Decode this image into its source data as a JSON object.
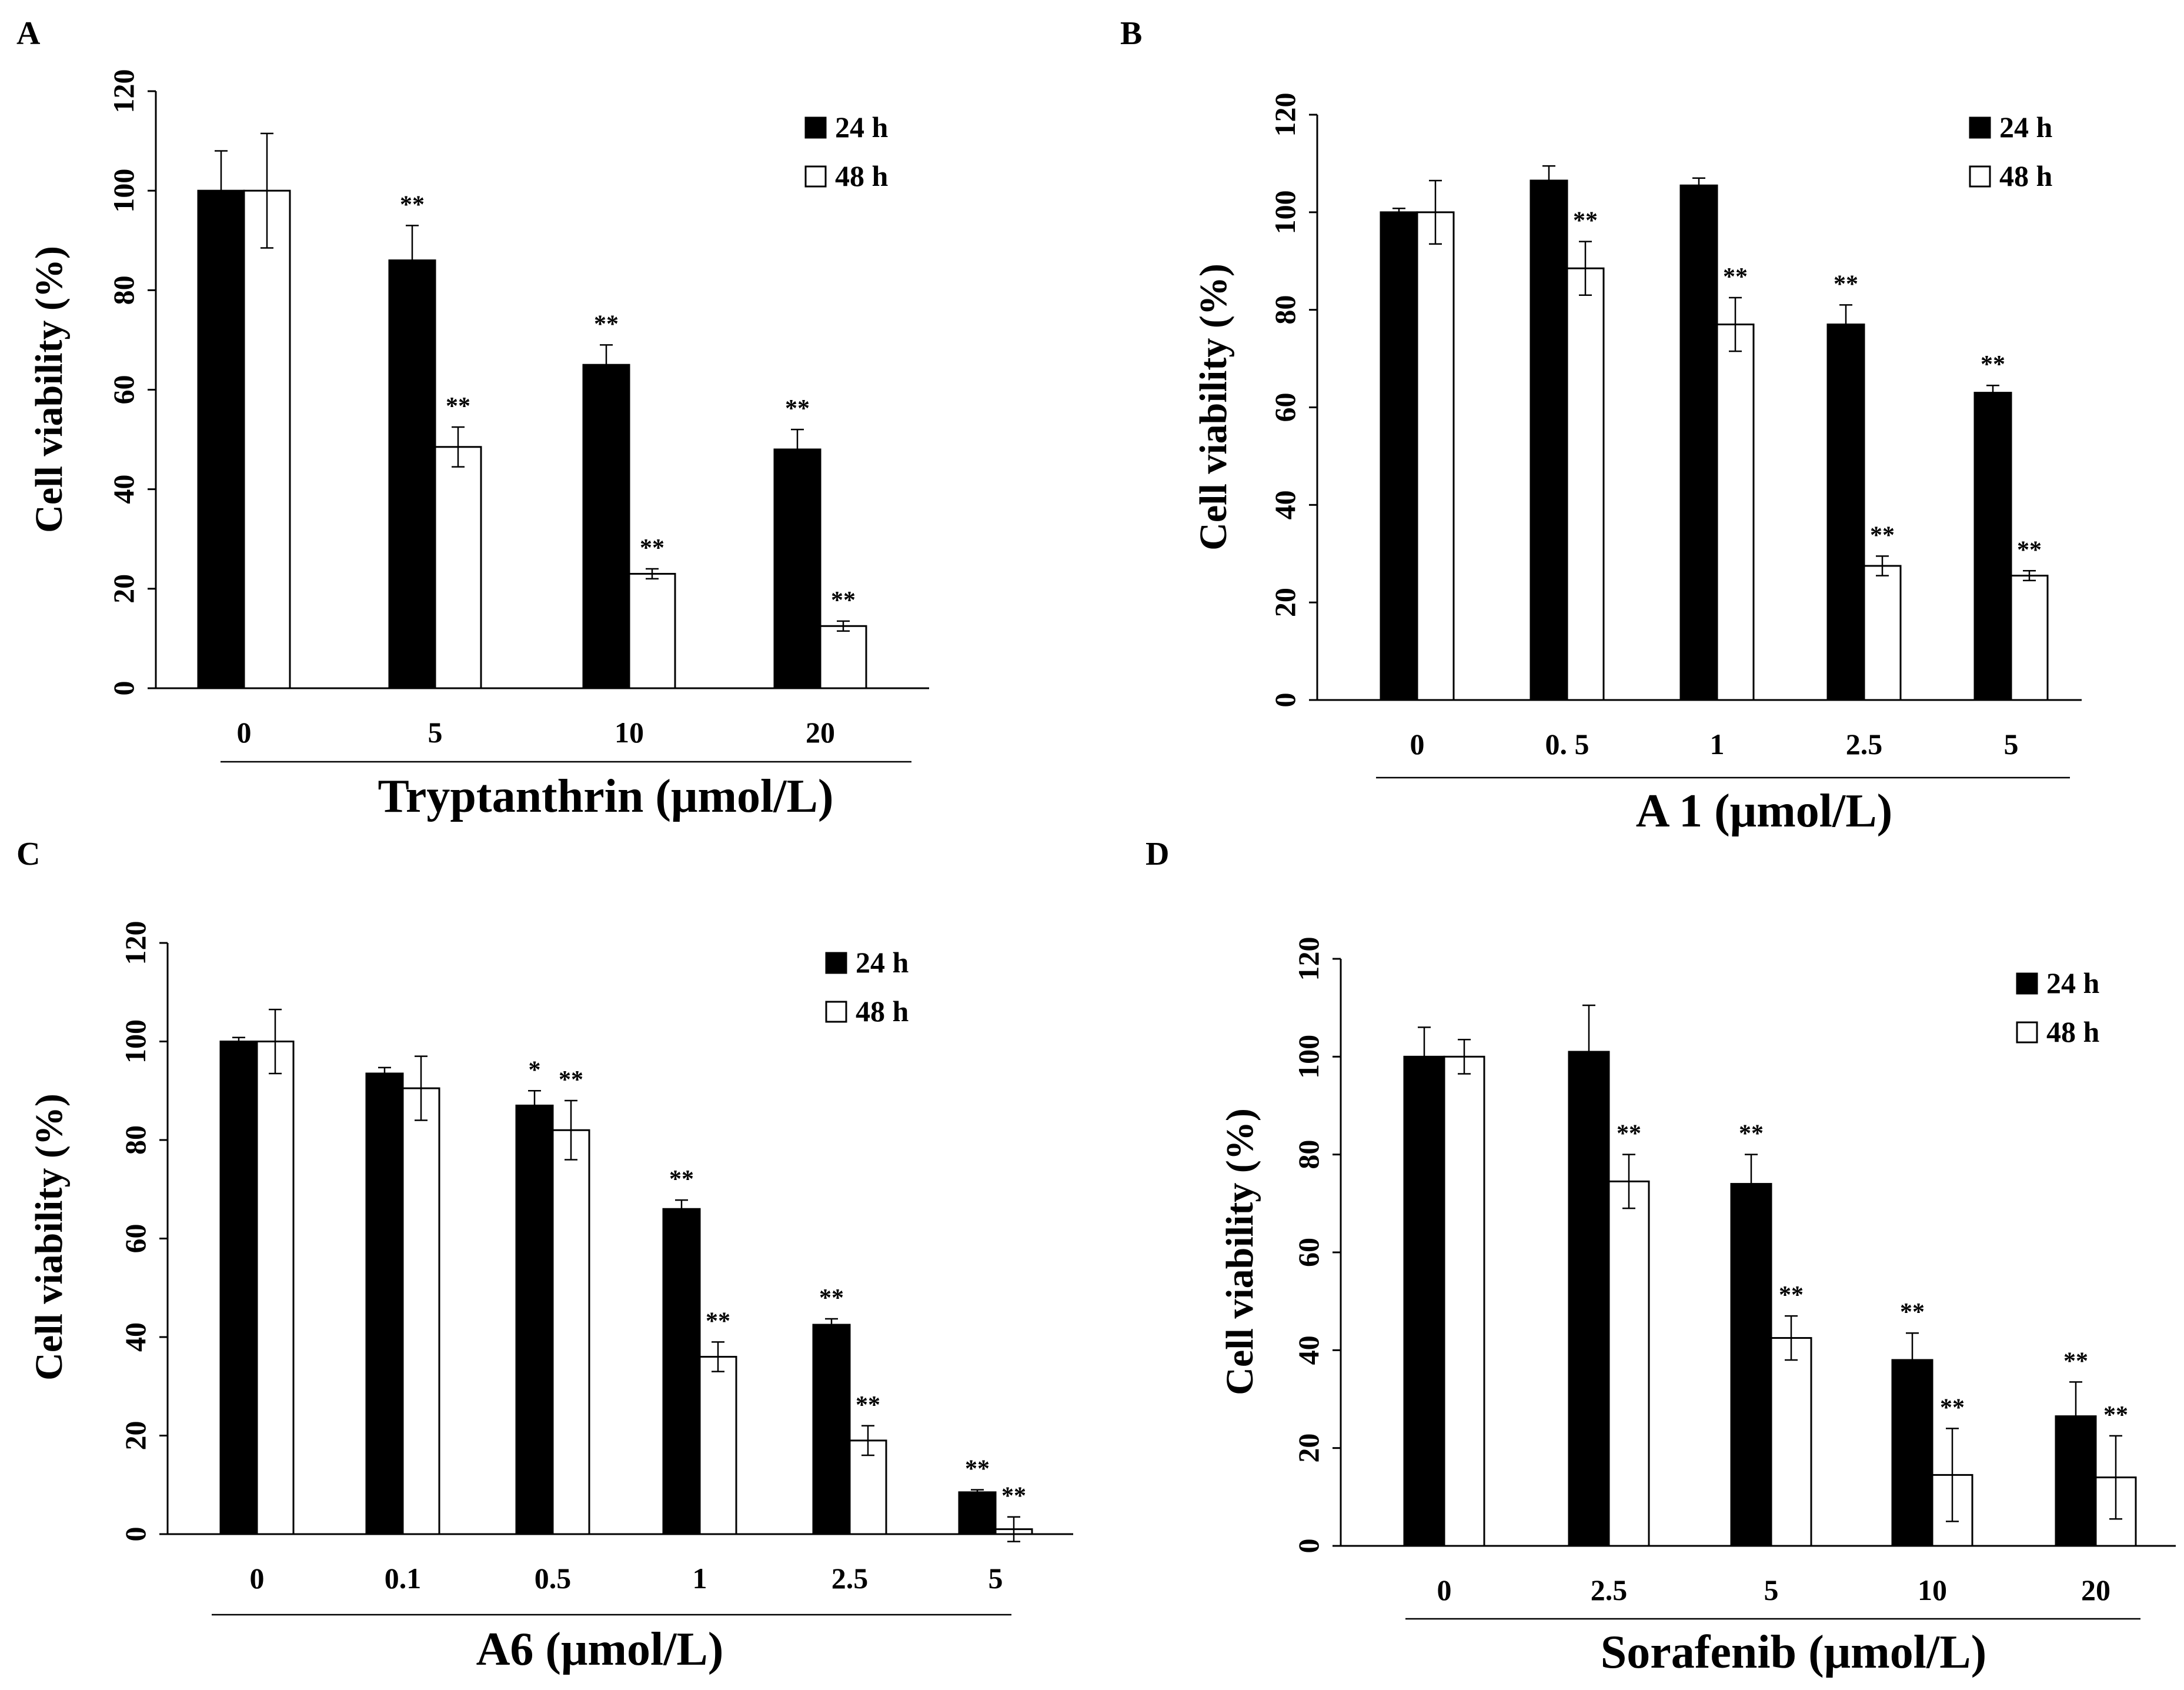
{
  "chart_data": [
    {
      "type": "bar",
      "panel": "A",
      "title": "",
      "xlabel": "Tryptanthrin (μmol/L)",
      "ylabel": "Cell viability (%)",
      "ylim": [
        0,
        120
      ],
      "yticks": [
        "0",
        "20",
        "40",
        "60",
        "80",
        "100",
        "120"
      ],
      "categories": [
        "0",
        "5",
        "10",
        "20"
      ],
      "legend_position": "top-right",
      "series": [
        {
          "name": "24 h",
          "color": "#000000",
          "values": [
            100,
            86,
            65,
            48
          ],
          "errors": [
            8,
            7,
            4,
            4
          ],
          "sig": [
            "",
            "**",
            "**",
            "**"
          ]
        },
        {
          "name": "48 h",
          "color": "#ffffff",
          "values": [
            100,
            48.5,
            23,
            12.5
          ],
          "errors": [
            11.5,
            4,
            1,
            1
          ],
          "sig": [
            "",
            "**",
            "**",
            "**"
          ]
        }
      ]
    },
    {
      "type": "bar",
      "panel": "B",
      "title": "",
      "xlabel": "A 1 (μmol/L)",
      "ylabel": "Cell viability (%)",
      "ylim": [
        0,
        120
      ],
      "yticks": [
        "0",
        "20",
        "40",
        "60",
        "80",
        "100",
        "120"
      ],
      "categories": [
        "0",
        "0. 5",
        "1",
        "2.5",
        "5"
      ],
      "legend_position": "top-right",
      "series": [
        {
          "name": "24 h",
          "color": "#000000",
          "values": [
            100,
            106.5,
            105.5,
            77,
            63
          ],
          "errors": [
            0.8,
            3,
            1.5,
            4,
            1.5
          ],
          "sig": [
            "",
            "",
            "",
            "**",
            "**"
          ]
        },
        {
          "name": "48 h",
          "color": "#ffffff",
          "values": [
            100,
            88.5,
            77,
            27.5,
            25.5
          ],
          "errors": [
            6.5,
            5.5,
            5.5,
            2,
            1
          ],
          "sig": [
            "",
            "**",
            "**",
            "**",
            "**"
          ]
        }
      ]
    },
    {
      "type": "bar",
      "panel": "C",
      "title": "",
      "xlabel": "A6 (μmol/L)",
      "ylabel": "Cell viability (%)",
      "ylim": [
        0,
        120
      ],
      "yticks": [
        "0",
        "20",
        "40",
        "60",
        "80",
        "100",
        "120"
      ],
      "categories": [
        "0",
        "0.1",
        "0.5",
        "1",
        "2.5",
        "5"
      ],
      "legend_position": "top-right",
      "series": [
        {
          "name": "24 h",
          "color": "#000000",
          "values": [
            100,
            93.5,
            87,
            66,
            42.5,
            8.5
          ],
          "errors": [
            0.8,
            1.2,
            3,
            1.8,
            1.2,
            0.5
          ],
          "sig": [
            "",
            "",
            "*",
            "**",
            "**",
            "**"
          ]
        },
        {
          "name": "48 h",
          "color": "#ffffff",
          "values": [
            100,
            90.5,
            82,
            36,
            19,
            1
          ],
          "errors": [
            6.5,
            6.5,
            6,
            3,
            3,
            2.5
          ],
          "sig": [
            "",
            "",
            "**",
            "**",
            "**",
            "**"
          ]
        }
      ]
    },
    {
      "type": "bar",
      "panel": "D",
      "title": "",
      "xlabel": "Sorafenib (μmol/L)",
      "ylabel": "Cell viability (%)",
      "ylim": [
        0,
        120
      ],
      "yticks": [
        "0",
        "20",
        "40",
        "60",
        "80",
        "100",
        "120"
      ],
      "categories": [
        "0",
        "2.5",
        "5",
        "10",
        "20"
      ],
      "legend_position": "top-right",
      "series": [
        {
          "name": "24 h",
          "color": "#000000",
          "values": [
            100,
            101,
            74,
            38,
            26.5
          ],
          "errors": [
            6,
            9.5,
            6,
            5.5,
            7
          ],
          "sig": [
            "",
            "",
            "**",
            "**",
            "**"
          ]
        },
        {
          "name": "48 h",
          "color": "#ffffff",
          "values": [
            100,
            74.5,
            42.5,
            14.5,
            14
          ],
          "errors": [
            3.5,
            5.5,
            4.5,
            9.5,
            8.5
          ],
          "sig": [
            "",
            "**",
            "**",
            "**",
            "**"
          ]
        }
      ]
    }
  ]
}
